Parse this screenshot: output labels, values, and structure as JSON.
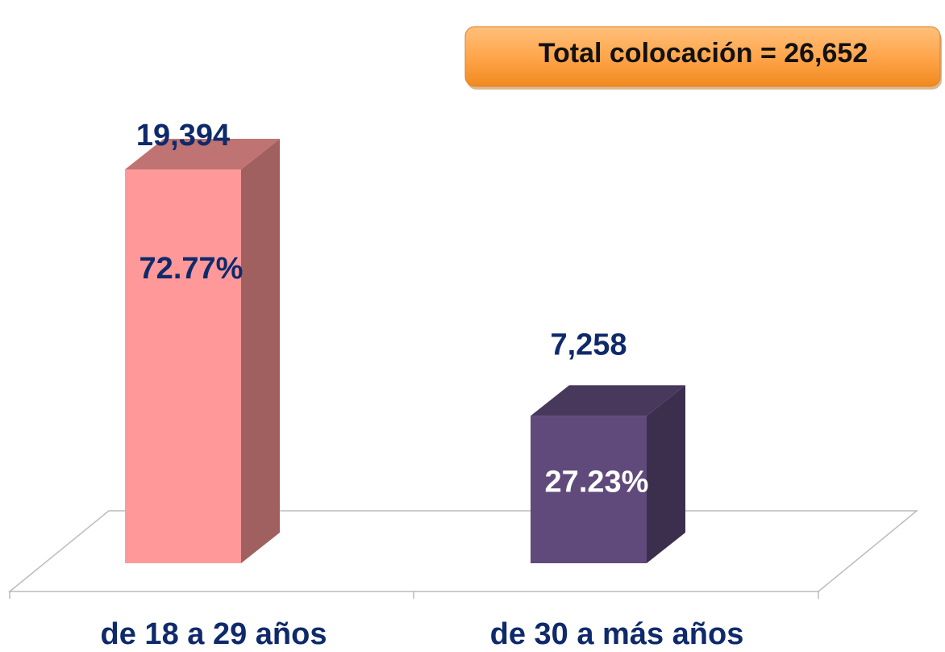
{
  "chart_data": {
    "type": "bar3d",
    "annotation": "Total  colocación = 26,652",
    "categories": [
      "de 18 a 29 años",
      "de  30 a más años"
    ],
    "values": [
      19394,
      7258
    ],
    "value_labels": [
      "19,394",
      "7,258"
    ],
    "shares": [
      72.77,
      27.23
    ],
    "share_labels": [
      "72.77%",
      "27.23%"
    ],
    "colors": [
      "#ff9999",
      "#604a7b"
    ],
    "ylim": [
      0,
      25000
    ]
  }
}
